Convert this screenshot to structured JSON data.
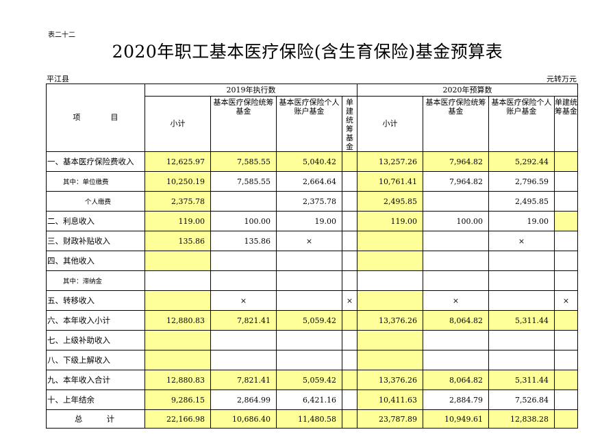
{
  "header": {
    "doc_no": "表二十二",
    "title": "2020年职工基本医疗保险(含生育保险)基金预算表",
    "county": "平江县",
    "unit": "元转万元"
  },
  "table": {
    "item_header": "项　　　　目",
    "group_2019": "2019年执行数",
    "group_2020": "2020年预算数",
    "col_subtotal": "小计",
    "col_pool": "基本医疗保险统筹基金",
    "col_personal": "基本医疗保险个人账户基金",
    "col_single": "单建统筹基金",
    "rows": [
      {
        "label": "一、基本医疗保险费收入",
        "v": [
          "12,625.97",
          "7,585.55",
          "5,040.42",
          "",
          "13,257.26",
          "7,964.82",
          "5,292.44",
          ""
        ]
      },
      {
        "label": "其中：单位缴费",
        "v": [
          "10,250.19",
          "7,585.55",
          "2,664.64",
          "",
          "10,761.41",
          "7,964.82",
          "2,796.59",
          ""
        ]
      },
      {
        "label": "个人缴费",
        "v": [
          "2,375.78",
          "",
          "2,375.78",
          "",
          "2,495.85",
          "",
          "2,495.85",
          ""
        ]
      },
      {
        "label": "二、利息收入",
        "v": [
          "119.00",
          "100.00",
          "19.00",
          "",
          "119.00",
          "100.00",
          "19.00",
          ""
        ]
      },
      {
        "label": "三、财政补贴收入",
        "v": [
          "135.86",
          "135.86",
          "×",
          "",
          "",
          "",
          "×",
          ""
        ]
      },
      {
        "label": "四、其他收入",
        "v": [
          "",
          "",
          "",
          "",
          "",
          "",
          "",
          ""
        ]
      },
      {
        "label": "其中：滞纳金",
        "v": [
          "",
          "",
          "",
          "",
          "",
          "",
          "",
          ""
        ]
      },
      {
        "label": "五、转移收入",
        "v": [
          "",
          "×",
          "",
          "×",
          "",
          "×",
          "",
          "×"
        ]
      },
      {
        "label": "六、本年收入小计",
        "v": [
          "12,880.83",
          "7,821.41",
          "5,059.42",
          "",
          "13,376.26",
          "8,064.82",
          "5,311.44",
          ""
        ]
      },
      {
        "label": "七、上级补助收入",
        "v": [
          "",
          "",
          "",
          "",
          "",
          "",
          "",
          ""
        ]
      },
      {
        "label": "八、下级上解收入",
        "v": [
          "",
          "",
          "",
          "",
          "",
          "",
          "",
          ""
        ]
      },
      {
        "label": "九、本年收入合计",
        "v": [
          "12,880.83",
          "7,821.41",
          "5,059.42",
          "",
          "13,376.26",
          "8,064.82",
          "5,311.44",
          ""
        ]
      },
      {
        "label": "十、上年结余",
        "v": [
          "9,286.15",
          "2,864.99",
          "6,421.16",
          "",
          "10,411.63",
          "2,884.79",
          "7,526.84",
          ""
        ]
      },
      {
        "label": "总　　计",
        "v": [
          "22,166.98",
          "10,686.40",
          "11,480.58",
          "",
          "23,787.89",
          "10,949.61",
          "12,838.28",
          ""
        ]
      }
    ]
  },
  "colors": {
    "highlight": "#ffff99"
  }
}
